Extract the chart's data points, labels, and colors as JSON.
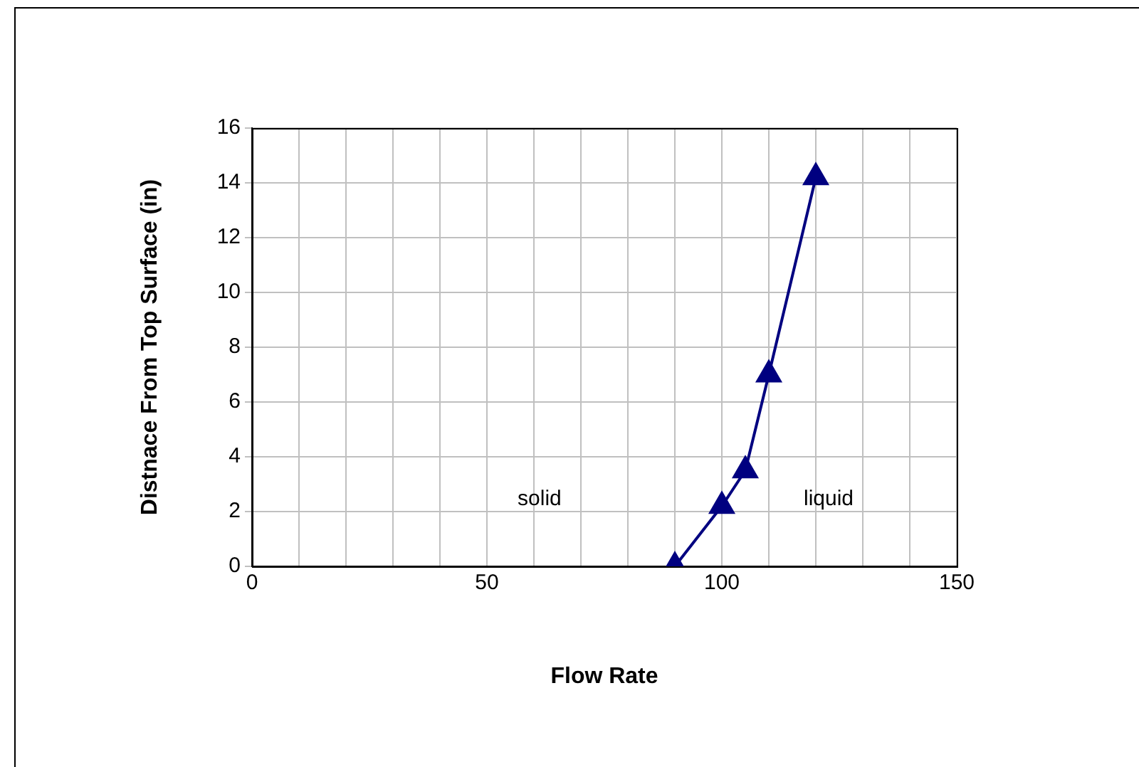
{
  "chart_data": {
    "type": "line",
    "xlabel": "Flow Rate",
    "ylabel": "Distnace From Top Surface (in)",
    "x": [
      90,
      100,
      105,
      110,
      120
    ],
    "series": [
      {
        "color": "#000080",
        "values": [
          0,
          2.2,
          3.5,
          7,
          14.2
        ]
      }
    ],
    "xlim": [
      0,
      150
    ],
    "xticks": [
      0,
      {
        "value": 10,
        "label": null
      },
      {
        "value": 20,
        "label": null
      },
      {
        "value": 30,
        "label": null
      },
      {
        "value": 40,
        "label": null
      },
      50,
      {
        "value": 60,
        "label": null
      },
      {
        "value": 70,
        "label": null
      },
      {
        "value": 80,
        "label": null
      },
      {
        "value": 90,
        "label": null
      },
      100,
      {
        "value": 110,
        "label": null
      },
      {
        "value": 120,
        "label": null
      },
      {
        "value": 130,
        "label": null
      },
      {
        "value": 140,
        "label": null
      },
      150
    ],
    "ylim": [
      0,
      16
    ],
    "yticks": [
      0,
      2,
      4,
      6,
      8,
      10,
      12,
      14,
      16
    ],
    "grid": true,
    "legend": false,
    "marker": "triangle",
    "line_style": "solid",
    "annotations": [
      "solid",
      "liquid"
    ]
  }
}
